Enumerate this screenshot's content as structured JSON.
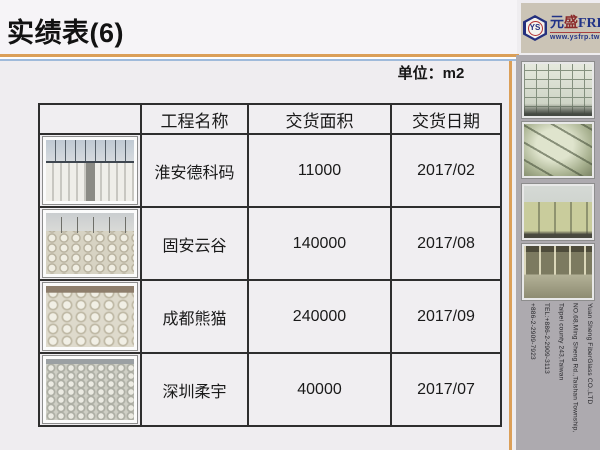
{
  "title": "实绩表(6)",
  "unit_label": "单位：m2",
  "table": {
    "columns": [
      "工程名称",
      "交货面积",
      "交货日期"
    ],
    "rows": [
      {
        "photo": "construction-site-tanks-photo",
        "name": "淮安德科码",
        "area": "11000",
        "date": "2017/02"
      },
      {
        "photo": "tank-field-cranes-photo",
        "name": "固安云谷",
        "area": "140000",
        "date": "2017/08"
      },
      {
        "photo": "cylinder-rows-overhead-photo",
        "name": "成都熊猫",
        "area": "240000",
        "date": "2017/09"
      },
      {
        "photo": "dense-cylinder-rows-photo",
        "name": "深圳柔宇",
        "area": "40000",
        "date": "2017/07"
      }
    ]
  },
  "sidebar": {
    "logo": {
      "monogram": "YS",
      "brand_cn_1": "元",
      "brand_cn_2": "盛",
      "brand_en": "FRP",
      "website": "www.ysfrp.tw"
    },
    "photos": [
      "frp-ceiling-grid-photo",
      "large-tank-pipes-photo",
      "storage-tanks-row-photo",
      "factory-interior-photo"
    ],
    "company_info": [
      "Yuan Sheng FiberGlass CO.,LTD",
      "NO.68,Ming Sheng Rd.,Taishan Township,",
      "Taipei county 243,Taiwan",
      "TEL:+886-2-2909-3113",
      "+886-2-2909-7923"
    ]
  },
  "colors": {
    "accent_orange": "#DB9F58",
    "accent_blue": "#9FBADA",
    "sidebar_gray": "#ADAAAF",
    "logo_beige": "#CBC4B6",
    "logo_navy": "#223387",
    "logo_red": "#8B2A2A",
    "slide_bg": "#EFEDF0"
  }
}
